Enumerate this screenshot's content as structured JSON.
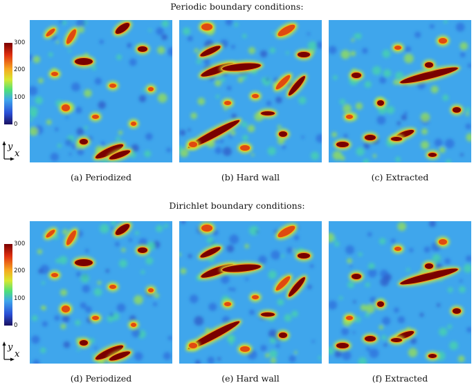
{
  "titles": {
    "periodic": "Periodic boundary conditions:",
    "dirichlet": "Dirichlet boundary conditions:"
  },
  "captions": {
    "a": "(a) Periodized",
    "b": "(b) Hard wall",
    "c": "(c) Extracted",
    "d": "(d) Periodized",
    "e": "(e) Hard wall",
    "f": "(f) Extracted"
  },
  "colorbar": {
    "ticks": [
      "300",
      "200",
      "100",
      "0"
    ],
    "colors": [
      "#7a0000",
      "#e03010",
      "#f6a820",
      "#d8e830",
      "#4de07a",
      "#3fa6ec",
      "#2a4fd6",
      "#1a1060"
    ]
  },
  "axes_icon": {
    "y_label": "y",
    "x_label": "x"
  }
}
